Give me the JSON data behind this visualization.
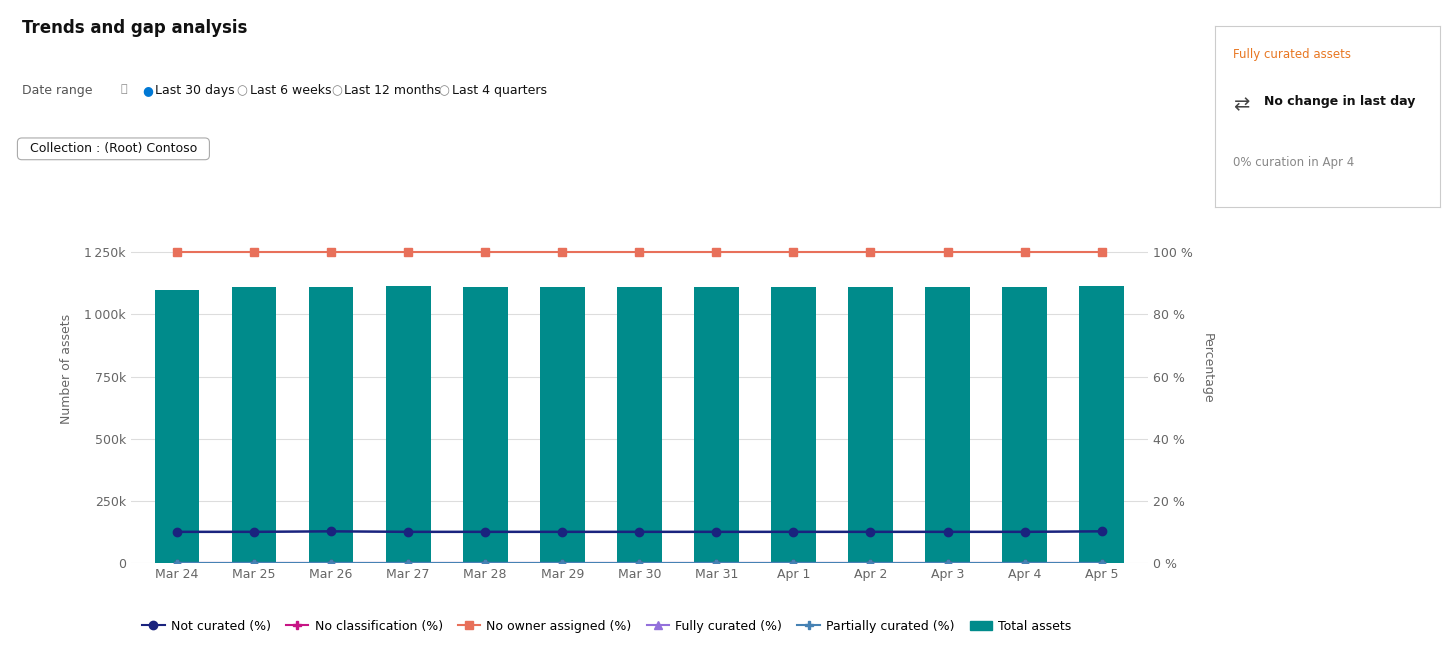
{
  "title": "Trends and gap analysis",
  "radio_options": [
    "Last 30 days",
    "Last 6 weeks",
    "Last 12 months",
    "Last 4 quarters"
  ],
  "collection_label": "Collection : (Root) Contoso",
  "categories": [
    "Mar 24",
    "Mar 25",
    "Mar 26",
    "Mar 27",
    "Mar 28",
    "Mar 29",
    "Mar 30",
    "Mar 31",
    "Apr 1",
    "Apr 2",
    "Apr 3",
    "Apr 4",
    "Apr 5"
  ],
  "bar_values": [
    1100000,
    1110000,
    1110000,
    1115000,
    1110000,
    1110000,
    1110000,
    1110000,
    1110000,
    1110000,
    1110000,
    1110000,
    1115000
  ],
  "bar_color": "#008B8B",
  "no_owner_assigned_pct": [
    100,
    100,
    100,
    100,
    100,
    100,
    100,
    100,
    100,
    100,
    100,
    100,
    100
  ],
  "not_curated_vals": [
    125000,
    125000,
    127000,
    125000,
    125000,
    125000,
    125000,
    125000,
    125000,
    125000,
    125000,
    125000,
    127000
  ],
  "no_classification_pct": [
    0.08,
    0.08,
    0.08,
    0.08,
    0.08,
    0.08,
    0.08,
    0.08,
    0.08,
    0.08,
    0.08,
    0.08,
    0.08
  ],
  "fully_curated_pct": [
    0.04,
    0.04,
    0.04,
    0.04,
    0.04,
    0.04,
    0.04,
    0.04,
    0.04,
    0.04,
    0.04,
    0.04,
    0.04
  ],
  "partially_curated_pct": [
    0.04,
    0.04,
    0.04,
    0.04,
    0.04,
    0.04,
    0.04,
    0.04,
    0.04,
    0.04,
    0.04,
    0.04,
    0.04
  ],
  "no_owner_color": "#E8705A",
  "not_curated_color": "#1A237E",
  "no_classification_color": "#C71585",
  "fully_curated_color": "#9370DB",
  "partially_curated_color": "#4682B4",
  "ylabel_left": "Number of assets",
  "ylabel_right": "Percentage",
  "ylim_left": [
    0,
    1562500
  ],
  "ylim_right": [
    0,
    125
  ],
  "yticks_left": [
    0,
    250000,
    500000,
    750000,
    1000000,
    1250000
  ],
  "yticks_right": [
    0,
    20,
    40,
    60,
    80,
    100
  ],
  "grid_color": "#DDDDDD",
  "background_color": "#FFFFFF",
  "box_title": "Fully curated assets",
  "box_subtitle": "No change in last day",
  "box_info": "0% curation in Apr 4",
  "legend_entries": [
    "Not curated (%)",
    "No classification (%)",
    "No owner assigned (%)",
    "Fully curated (%)",
    "Partially curated (%)",
    "Total assets"
  ],
  "title_fontsize": 12,
  "axis_fontsize": 9,
  "tick_fontsize": 9
}
